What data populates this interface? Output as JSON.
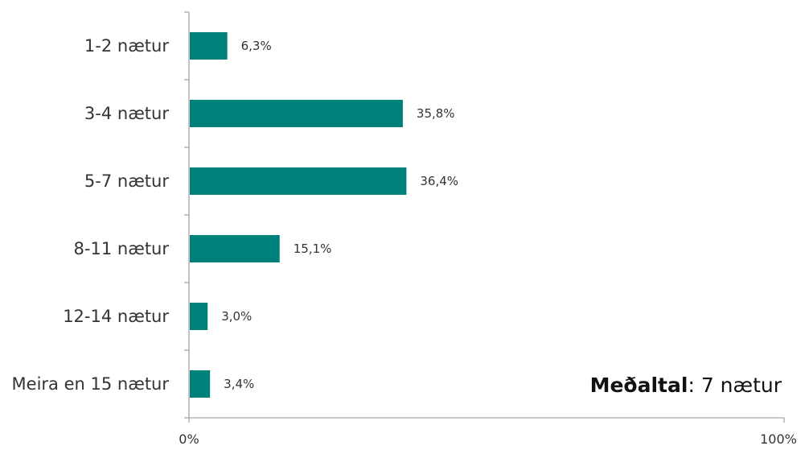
{
  "chart_data": {
    "type": "bar",
    "orientation": "horizontal",
    "categories": [
      "1-2 nætur",
      "3-4 nætur",
      "5-7 nætur",
      "8-11 nætur",
      "12-14 nætur",
      "Meira en 15 nætur"
    ],
    "values": [
      6.3,
      35.8,
      36.4,
      15.1,
      3.0,
      3.4
    ],
    "value_labels": [
      "6,3%",
      "35,8%",
      "36,4%",
      "15,1%",
      "3,0%",
      "3,4%"
    ],
    "xlim": [
      0,
      100
    ],
    "x_tick_labels": [
      "0%",
      "100%"
    ],
    "bar_color": "#00807a",
    "grid": false,
    "legend": "none",
    "annotation": {
      "key": "Meðaltal",
      "separator": ":",
      "value": " 7 nætur"
    }
  }
}
